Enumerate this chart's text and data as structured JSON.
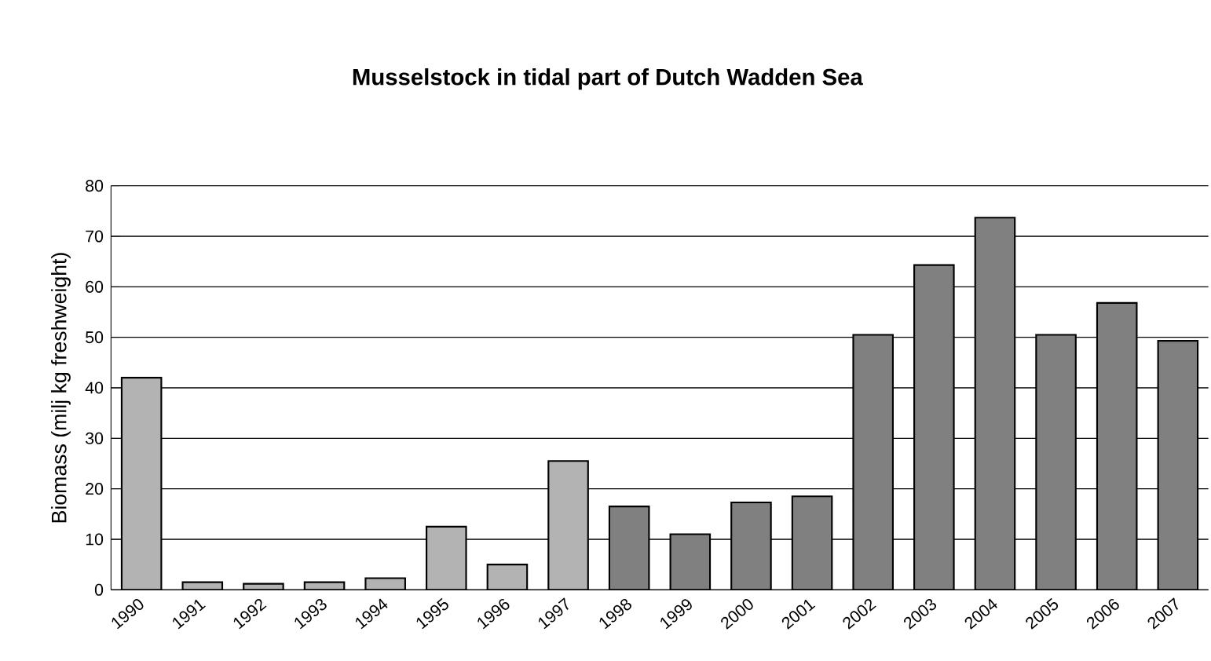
{
  "chart_data": {
    "type": "bar",
    "title": "Musselstock in tidal part of Dutch Wadden Sea",
    "ylabel": "Biomass (milj kg freshweight)",
    "categories": [
      "1990",
      "1991",
      "1992",
      "1993",
      "1994",
      "1995",
      "1996",
      "1997",
      "1998",
      "1999",
      "2000",
      "2001",
      "2002",
      "2003",
      "2004",
      "2005",
      "2006",
      "2007"
    ],
    "series": [
      {
        "color": "#b3b3b3",
        "values": [
          42,
          1.5,
          1.2,
          1.5,
          2.3,
          12.5,
          5,
          25.5,
          null,
          null,
          null,
          null,
          null,
          null,
          null,
          null,
          null,
          null
        ]
      },
      {
        "color": "#808080",
        "values": [
          null,
          null,
          null,
          null,
          null,
          null,
          null,
          null,
          16.5,
          11,
          17.3,
          18.5,
          50.5,
          64.3,
          73.7,
          50.5,
          56.8,
          49.3
        ]
      }
    ],
    "ylim": [
      0,
      80
    ],
    "yticks": [
      0,
      10,
      20,
      30,
      40,
      50,
      60,
      70,
      80
    ],
    "grid": "y"
  }
}
